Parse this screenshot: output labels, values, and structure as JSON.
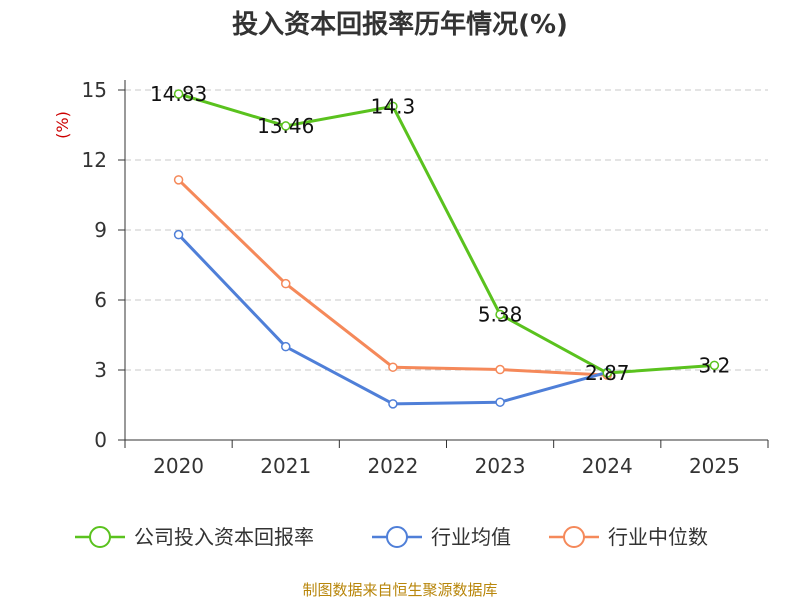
{
  "chart_data": {
    "type": "line",
    "title": "投入资本回报率历年情况(%)",
    "ylabel": "(%)",
    "xlabel": "",
    "categories": [
      "2020",
      "2021",
      "2022",
      "2023",
      "2024",
      "2025"
    ],
    "ylim": [
      0,
      15
    ],
    "yticks": [
      0,
      3,
      6,
      9,
      12,
      15
    ],
    "grid": true,
    "legend_position": "bottom",
    "series": [
      {
        "name": "公司投入资本回报率",
        "color": "#5ac21e",
        "values": [
          14.83,
          13.46,
          14.3,
          5.38,
          2.87,
          3.2
        ],
        "labels": [
          "14.83",
          "13.46",
          "14.3",
          "5.38",
          "2.87",
          "3.2"
        ]
      },
      {
        "name": "行业均值",
        "color": "#4f7fd8",
        "values": [
          8.8,
          4.0,
          1.55,
          1.62,
          2.9,
          null
        ],
        "labels": null
      },
      {
        "name": "行业中位数",
        "color": "#f5895a",
        "values": [
          11.15,
          6.7,
          3.12,
          3.02,
          2.78,
          null
        ],
        "labels": null
      }
    ]
  },
  "source": "制图数据来自恒生聚源数据库"
}
